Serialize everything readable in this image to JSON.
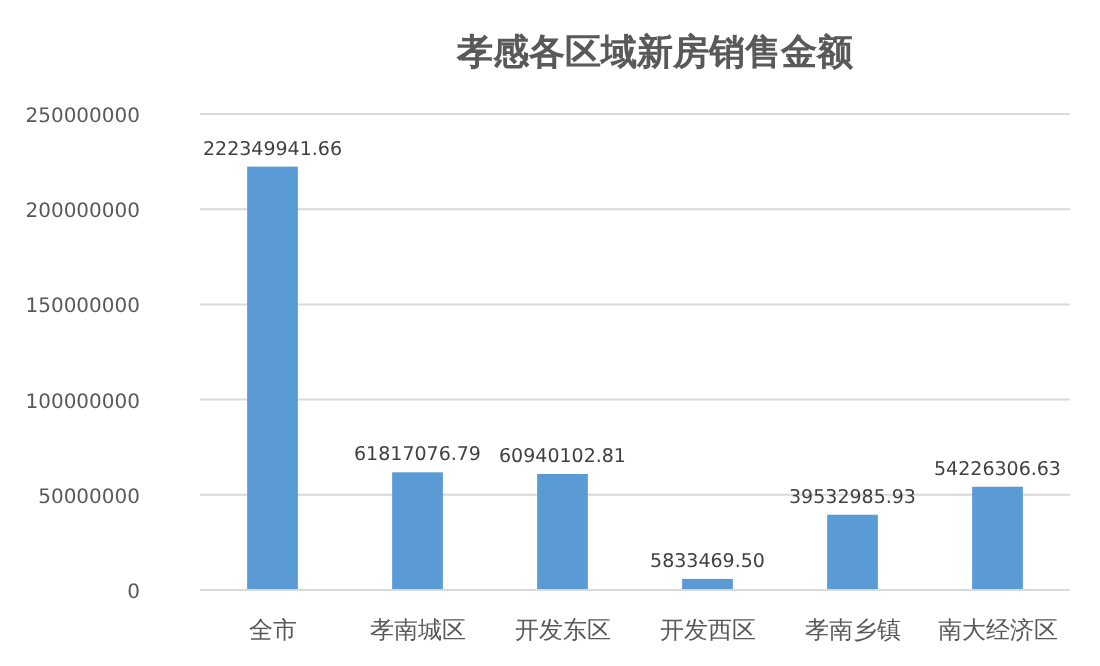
{
  "chart_data": {
    "type": "bar",
    "title": "孝感各区域新房销售金额",
    "categories": [
      "全市",
      "孝南城区",
      "开发东区",
      "开发西区",
      "孝南乡镇",
      "南大经济区"
    ],
    "values": [
      222349941.66,
      61817076.79,
      60940102.81,
      5833469.5,
      39532985.93,
      54226306.63
    ],
    "value_labels": [
      "222349941.66",
      "61817076.79",
      "60940102.81",
      "5833469.50",
      "39532985.93",
      "54226306.63"
    ],
    "color": "#5b9bd5",
    "ylim": [
      0,
      250000000
    ],
    "yticks": [
      0,
      50000000,
      100000000,
      150000000,
      200000000,
      250000000
    ],
    "grid": "y"
  }
}
